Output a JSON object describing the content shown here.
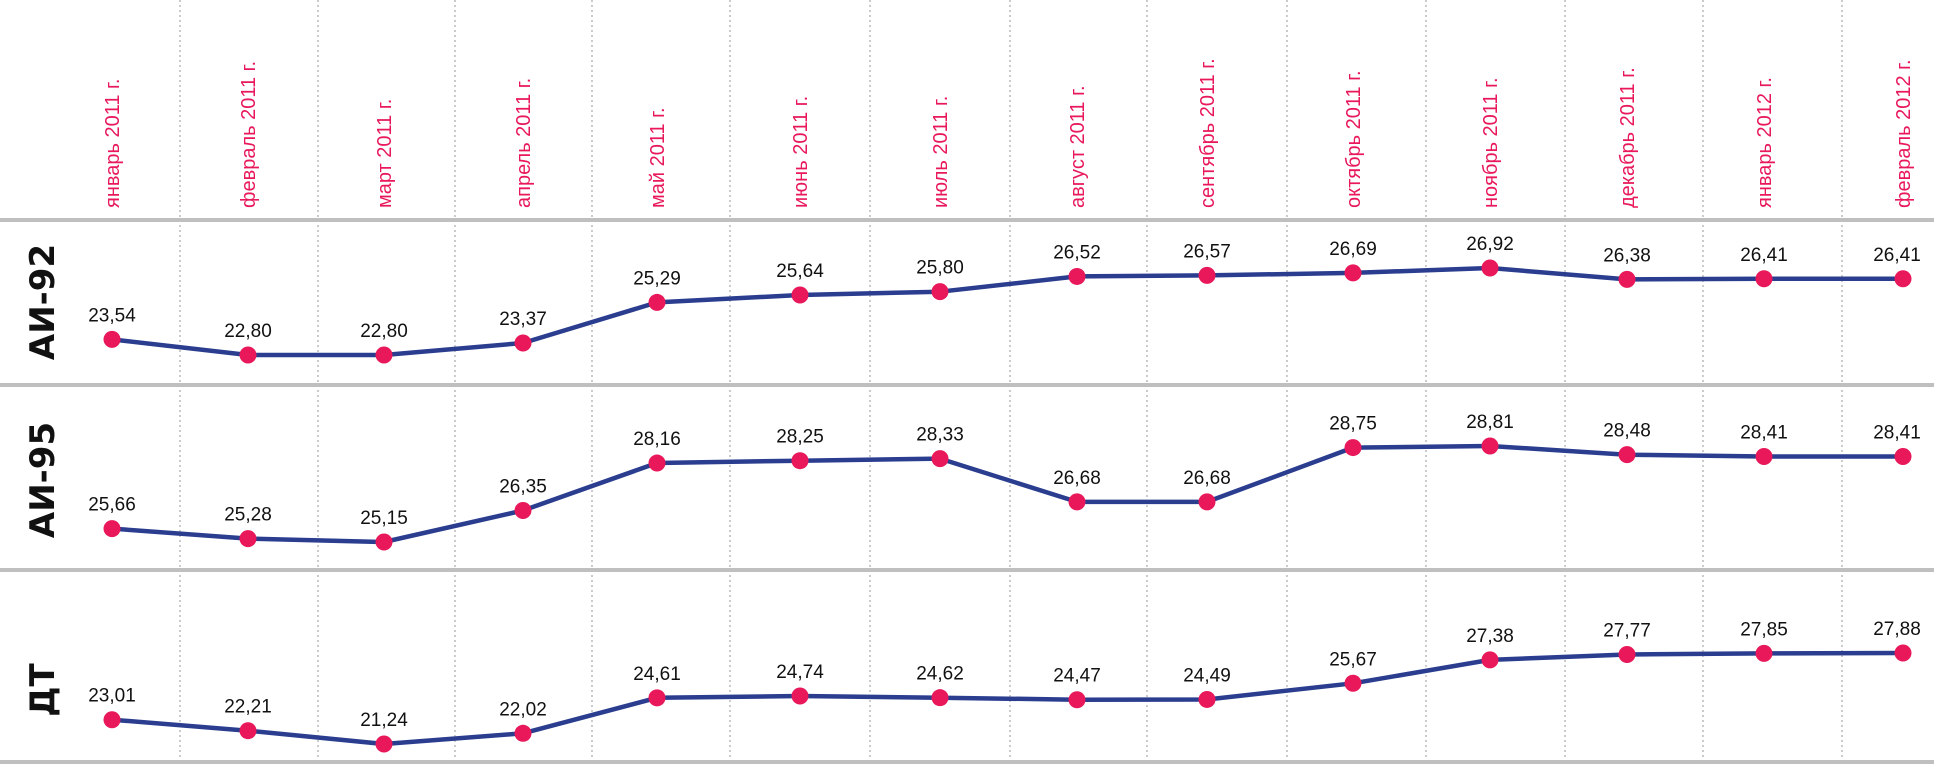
{
  "chart_data": {
    "type": "line",
    "categories": [
      "январь 2011 г.",
      "февраль 2011 г.",
      "март 2011 г.",
      "апрель 2011 г.",
      "май 2011 г.",
      "июнь 2011 г.",
      "июль 2011 г.",
      "август 2011 г.",
      "сентябрь 2011 г.",
      "октябрь 2011 г.",
      "ноябрь 2011 г.",
      "декабрь 2011 г.",
      "январь 2012 г.",
      "февраль 2012 г."
    ],
    "series": [
      {
        "name": "АИ-92",
        "values": [
          23.54,
          22.8,
          22.8,
          23.37,
          25.29,
          25.64,
          25.8,
          26.52,
          26.57,
          26.69,
          26.92,
          26.38,
          26.41,
          26.41
        ],
        "labels": [
          "23,54",
          "22,80",
          "22,80",
          "23,37",
          "25,29",
          "25,64",
          "25,80",
          "26,52",
          "26,57",
          "26,69",
          "26,92",
          "26,38",
          "26,41",
          "26,41"
        ]
      },
      {
        "name": "АИ-95",
        "values": [
          25.66,
          25.28,
          25.15,
          26.35,
          28.16,
          28.25,
          28.33,
          26.68,
          26.68,
          28.75,
          28.81,
          28.48,
          28.41,
          28.41
        ],
        "labels": [
          "25,66",
          "25,28",
          "25,15",
          "26,35",
          "28,16",
          "28,25",
          "28,33",
          "26,68",
          "26,68",
          "28,75",
          "28,81",
          "28,48",
          "28,41",
          "28,41"
        ]
      },
      {
        "name": "ДТ",
        "values": [
          23.01,
          22.21,
          21.24,
          22.02,
          24.61,
          24.74,
          24.62,
          24.47,
          24.49,
          25.67,
          27.38,
          27.77,
          27.85,
          27.88
        ],
        "labels": [
          "23,01",
          "22,21",
          "21,24",
          "22,02",
          "24,61",
          "24,74",
          "24,62",
          "24,47",
          "24,49",
          "25,67",
          "27,38",
          "27,77",
          "27,85",
          "27,88"
        ]
      }
    ],
    "grid": "vertical dotted",
    "legend": "none",
    "colors": {
      "line": "#2b3d8f",
      "marker": "#e8185a",
      "month_label": "#e8185a",
      "separator": "#bfbfbf"
    }
  }
}
